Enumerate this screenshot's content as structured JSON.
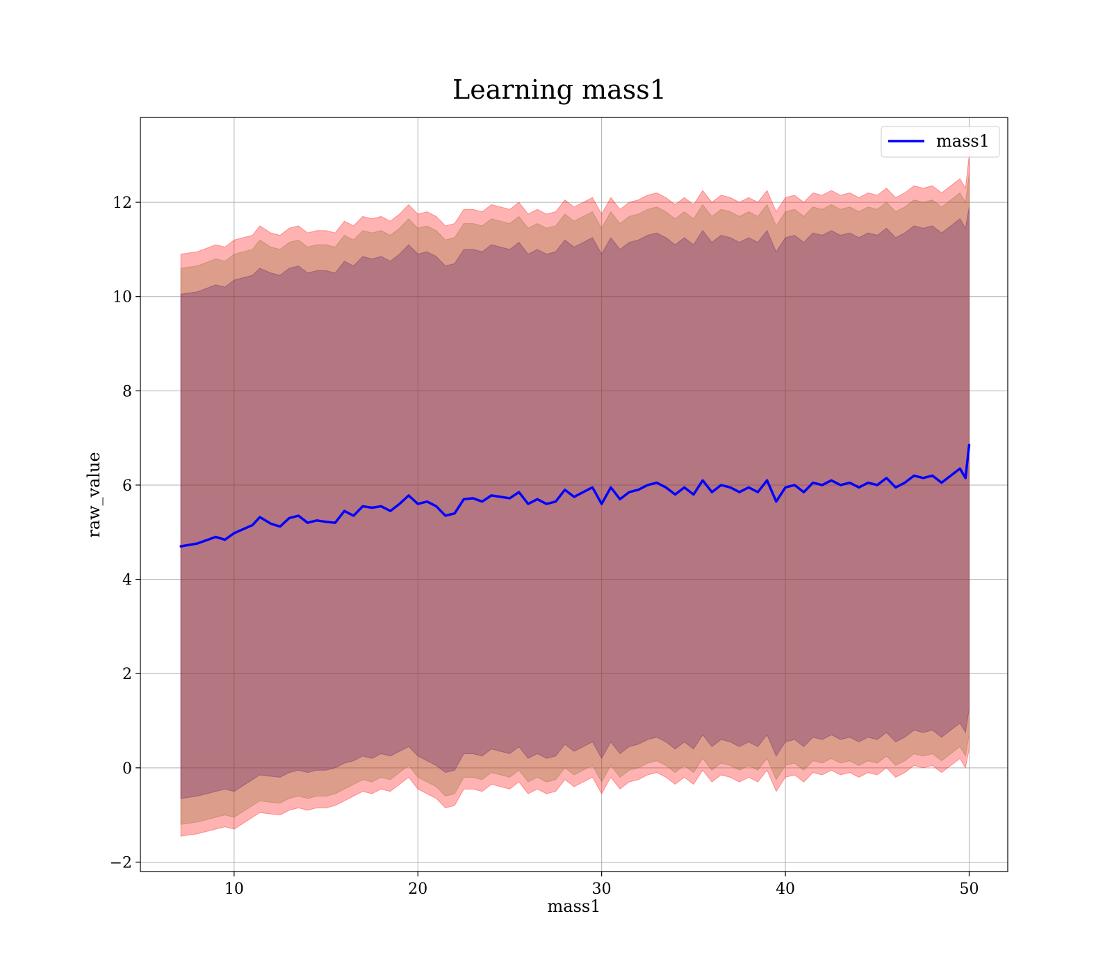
{
  "chart_data": {
    "type": "area",
    "title": "Learning mass1",
    "xlabel": "mass1",
    "ylabel": "raw_value",
    "xlim": [
      4.9,
      52.1
    ],
    "ylim": [
      -2.2,
      13.8
    ],
    "x_ticks": [
      10,
      20,
      30,
      40,
      50
    ],
    "y_ticks": [
      -2,
      0,
      2,
      4,
      6,
      8,
      10,
      12
    ],
    "x_tick_labels": [
      "10",
      "20",
      "30",
      "40",
      "50"
    ],
    "y_tick_labels": [
      "−2",
      "0",
      "2",
      "4",
      "6",
      "8",
      "10",
      "12"
    ],
    "grid": true,
    "legend": {
      "position": "top-right",
      "entries": [
        "mass1"
      ]
    },
    "colors": {
      "line": "#0000ff",
      "band_outer": "#ff0000",
      "band_middle": "#8b6d2e",
      "band_inner": "#5a1e6a"
    },
    "series": [
      {
        "name": "mass1",
        "x": [
          7.1,
          8,
          9,
          9.5,
          10,
          11,
          11.4,
          12,
          12.5,
          13,
          13.5,
          14,
          14.5,
          15,
          15.5,
          16,
          16.5,
          17,
          17.5,
          18,
          18.5,
          19,
          19.5,
          20,
          20.5,
          21,
          21.5,
          22,
          22.5,
          23,
          23.5,
          24,
          24.5,
          25,
          25.5,
          26,
          26.5,
          27,
          27.5,
          28,
          28.5,
          29,
          29.5,
          30,
          30.5,
          31,
          31.5,
          32,
          32.5,
          33,
          33.5,
          34,
          34.5,
          35,
          35.5,
          36,
          36.5,
          37,
          37.5,
          38,
          38.5,
          39,
          39.5,
          40,
          40.5,
          41,
          41.5,
          42,
          42.5,
          43,
          43.5,
          44,
          44.5,
          45,
          45.5,
          46,
          46.5,
          47,
          47.5,
          48,
          48.5,
          49,
          49.5,
          49.8,
          50
        ],
        "y": [
          4.7,
          4.76,
          4.9,
          4.84,
          4.98,
          5.15,
          5.32,
          5.18,
          5.12,
          5.3,
          5.35,
          5.2,
          5.25,
          5.22,
          5.2,
          5.45,
          5.35,
          5.55,
          5.52,
          5.55,
          5.45,
          5.6,
          5.78,
          5.6,
          5.65,
          5.55,
          5.35,
          5.4,
          5.7,
          5.72,
          5.65,
          5.78,
          5.75,
          5.72,
          5.85,
          5.6,
          5.7,
          5.6,
          5.65,
          5.9,
          5.75,
          5.85,
          5.95,
          5.6,
          5.95,
          5.7,
          5.85,
          5.9,
          6.0,
          6.05,
          5.95,
          5.8,
          5.95,
          5.8,
          6.1,
          5.85,
          6.0,
          5.95,
          5.85,
          5.95,
          5.85,
          6.1,
          5.65,
          5.95,
          6.0,
          5.85,
          6.05,
          6.0,
          6.1,
          6.0,
          6.05,
          5.95,
          6.05,
          6.0,
          6.15,
          5.95,
          6.05,
          6.2,
          6.15,
          6.2,
          6.05,
          6.2,
          6.35,
          6.15,
          6.85
        ],
        "bands": [
          {
            "lower": [
              -1.45,
              -1.4,
              -1.3,
              -1.25,
              -1.3,
              -1.05,
              -0.95,
              -0.98,
              -1.0,
              -0.9,
              -0.85,
              -0.9,
              -0.85,
              -0.85,
              -0.8,
              -0.7,
              -0.6,
              -0.5,
              -0.55,
              -0.45,
              -0.5,
              -0.35,
              -0.2,
              -0.45,
              -0.55,
              -0.65,
              -0.85,
              -0.8,
              -0.45,
              -0.45,
              -0.5,
              -0.35,
              -0.4,
              -0.45,
              -0.3,
              -0.55,
              -0.45,
              -0.55,
              -0.5,
              -0.25,
              -0.4,
              -0.3,
              -0.2,
              -0.55,
              -0.2,
              -0.45,
              -0.3,
              -0.25,
              -0.15,
              -0.1,
              -0.2,
              -0.35,
              -0.2,
              -0.35,
              -0.05,
              -0.3,
              -0.15,
              -0.2,
              -0.3,
              -0.2,
              -0.3,
              -0.05,
              -0.5,
              -0.2,
              -0.15,
              -0.3,
              -0.1,
              -0.15,
              -0.05,
              -0.15,
              -0.1,
              -0.2,
              -0.1,
              -0.15,
              0.0,
              -0.2,
              -0.1,
              0.05,
              0.0,
              0.05,
              -0.1,
              0.05,
              0.2,
              0.0,
              0.4
            ],
            "upper": [
              10.9,
              10.95,
              11.1,
              11.05,
              11.2,
              11.3,
              11.5,
              11.35,
              11.3,
              11.45,
              11.5,
              11.35,
              11.4,
              11.4,
              11.35,
              11.6,
              11.5,
              11.7,
              11.65,
              11.7,
              11.6,
              11.75,
              11.95,
              11.75,
              11.8,
              11.7,
              11.5,
              11.55,
              11.85,
              11.85,
              11.8,
              11.95,
              11.9,
              11.85,
              12.0,
              11.75,
              11.85,
              11.75,
              11.8,
              12.05,
              11.9,
              12.0,
              12.1,
              11.75,
              12.1,
              11.85,
              12.0,
              12.05,
              12.15,
              12.2,
              12.1,
              11.95,
              12.1,
              11.95,
              12.25,
              12.0,
              12.15,
              12.1,
              12.0,
              12.1,
              12.0,
              12.25,
              11.8,
              12.1,
              12.15,
              12.0,
              12.2,
              12.15,
              12.25,
              12.15,
              12.2,
              12.1,
              12.2,
              12.15,
              12.3,
              12.1,
              12.2,
              12.35,
              12.3,
              12.35,
              12.2,
              12.35,
              12.5,
              12.3,
              13.0
            ]
          },
          {
            "lower": [
              -1.2,
              -1.15,
              -1.05,
              -1.0,
              -1.05,
              -0.8,
              -0.7,
              -0.73,
              -0.75,
              -0.65,
              -0.6,
              -0.65,
              -0.6,
              -0.6,
              -0.55,
              -0.45,
              -0.35,
              -0.25,
              -0.3,
              -0.2,
              -0.25,
              -0.1,
              0.05,
              -0.2,
              -0.3,
              -0.4,
              -0.6,
              -0.55,
              -0.2,
              -0.2,
              -0.25,
              -0.1,
              -0.15,
              -0.2,
              -0.05,
              -0.3,
              -0.2,
              -0.3,
              -0.25,
              0.0,
              -0.15,
              -0.05,
              0.05,
              -0.3,
              0.05,
              -0.2,
              -0.05,
              0.0,
              0.1,
              0.15,
              0.05,
              -0.1,
              0.05,
              -0.1,
              0.2,
              -0.05,
              0.1,
              0.05,
              -0.05,
              0.05,
              -0.05,
              0.2,
              -0.25,
              0.05,
              0.1,
              -0.05,
              0.15,
              0.1,
              0.2,
              0.1,
              0.15,
              0.05,
              0.15,
              0.1,
              0.25,
              0.05,
              0.15,
              0.3,
              0.25,
              0.3,
              0.15,
              0.3,
              0.45,
              0.25,
              0.7
            ],
            "upper": [
              10.6,
              10.65,
              10.8,
              10.75,
              10.9,
              11.0,
              11.2,
              11.05,
              11.0,
              11.15,
              11.2,
              11.05,
              11.1,
              11.1,
              11.05,
              11.3,
              11.2,
              11.4,
              11.35,
              11.4,
              11.3,
              11.45,
              11.65,
              11.45,
              11.5,
              11.4,
              11.2,
              11.25,
              11.55,
              11.55,
              11.5,
              11.65,
              11.6,
              11.55,
              11.7,
              11.45,
              11.55,
              11.45,
              11.5,
              11.75,
              11.6,
              11.7,
              11.8,
              11.45,
              11.8,
              11.55,
              11.7,
              11.75,
              11.85,
              11.9,
              11.8,
              11.65,
              11.8,
              11.65,
              11.95,
              11.7,
              11.85,
              11.8,
              11.7,
              11.8,
              11.7,
              11.95,
              11.5,
              11.8,
              11.85,
              11.7,
              11.9,
              11.85,
              11.95,
              11.85,
              11.9,
              11.8,
              11.9,
              11.85,
              12.0,
              11.8,
              11.9,
              12.05,
              12.0,
              12.05,
              11.9,
              12.05,
              12.2,
              12.0,
              12.6
            ]
          },
          {
            "lower": [
              -0.65,
              -0.6,
              -0.5,
              -0.45,
              -0.5,
              -0.25,
              -0.15,
              -0.18,
              -0.2,
              -0.1,
              -0.05,
              -0.1,
              -0.05,
              -0.05,
              0.0,
              0.1,
              0.15,
              0.25,
              0.2,
              0.3,
              0.25,
              0.35,
              0.45,
              0.25,
              0.15,
              0.05,
              -0.1,
              -0.05,
              0.3,
              0.3,
              0.25,
              0.4,
              0.35,
              0.3,
              0.45,
              0.2,
              0.3,
              0.2,
              0.25,
              0.5,
              0.35,
              0.45,
              0.55,
              0.2,
              0.55,
              0.3,
              0.45,
              0.5,
              0.6,
              0.65,
              0.55,
              0.4,
              0.55,
              0.4,
              0.7,
              0.45,
              0.6,
              0.55,
              0.45,
              0.55,
              0.45,
              0.7,
              0.25,
              0.55,
              0.6,
              0.45,
              0.65,
              0.6,
              0.7,
              0.6,
              0.65,
              0.55,
              0.65,
              0.6,
              0.75,
              0.55,
              0.65,
              0.8,
              0.75,
              0.8,
              0.65,
              0.8,
              0.95,
              0.75,
              1.25
            ],
            "upper": [
              10.05,
              10.1,
              10.25,
              10.2,
              10.35,
              10.45,
              10.6,
              10.5,
              10.45,
              10.6,
              10.65,
              10.5,
              10.55,
              10.55,
              10.5,
              10.75,
              10.65,
              10.85,
              10.8,
              10.85,
              10.75,
              10.9,
              11.1,
              10.9,
              10.95,
              10.85,
              10.65,
              10.7,
              11.0,
              11.0,
              10.95,
              11.1,
              11.05,
              11.0,
              11.15,
              10.9,
              11.0,
              10.9,
              10.95,
              11.2,
              11.05,
              11.15,
              11.25,
              10.9,
              11.25,
              11.0,
              11.15,
              11.2,
              11.3,
              11.35,
              11.25,
              11.1,
              11.25,
              11.1,
              11.4,
              11.15,
              11.3,
              11.25,
              11.15,
              11.25,
              11.15,
              11.4,
              10.95,
              11.25,
              11.3,
              11.15,
              11.35,
              11.3,
              11.4,
              11.3,
              11.35,
              11.25,
              11.35,
              11.3,
              11.45,
              11.25,
              11.35,
              11.5,
              11.45,
              11.5,
              11.35,
              11.5,
              11.65,
              11.45,
              11.9
            ]
          }
        ]
      }
    ]
  }
}
